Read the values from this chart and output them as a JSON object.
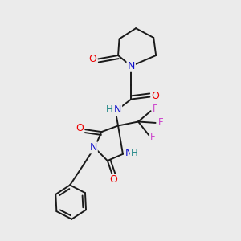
{
  "bg_color": "#ebebeb",
  "bond_color": "#1a1a1a",
  "atom_colors": {
    "N": "#1010cc",
    "O": "#ee0000",
    "F": "#cc44cc",
    "H": "#228888",
    "C": "#1a1a1a"
  },
  "figsize": [
    3.0,
    3.0
  ],
  "dpi": 100
}
